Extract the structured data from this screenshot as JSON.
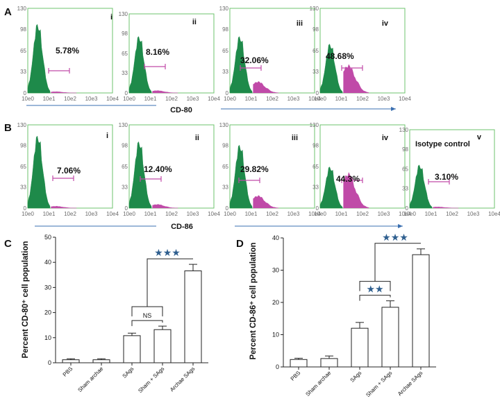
{
  "figure": {
    "panel_labels": [
      "A",
      "B",
      "C",
      "D"
    ],
    "marker_A": "CD-80",
    "marker_B": "CD-86"
  },
  "chart_data": [
    {
      "type": "histogram",
      "panel": "A",
      "title": "CD-80",
      "x_ticks": [
        "10e0",
        "10e1",
        "10e2",
        "10e3",
        "10e4"
      ],
      "y_ticks": [
        "0",
        "33",
        "65",
        "98",
        "130"
      ],
      "ylim": [
        0,
        130
      ],
      "colors": {
        "negative": "#1e8a4a",
        "positive": "#c04aa8",
        "gate": "#c04aa8",
        "frame": "#6cc36c",
        "arrow": "#3a6fb0"
      },
      "subplots": [
        {
          "label": "i",
          "percent": "5.78%",
          "neg_peak": 118,
          "pos_level": 2
        },
        {
          "label": "ii",
          "percent": "8.16%",
          "neg_peak": 104,
          "pos_level": 4
        },
        {
          "label": "iii",
          "percent": "32.06%",
          "neg_peak": 97,
          "pos_level": 18
        },
        {
          "label": "iv",
          "percent": "48.68%",
          "neg_peak": 84,
          "pos_level": 44
        }
      ]
    },
    {
      "type": "histogram",
      "panel": "B",
      "title": "CD-86",
      "x_ticks": [
        "10e0",
        "10e1",
        "10e2",
        "10e3",
        "10e4"
      ],
      "y_ticks": [
        "0",
        "33",
        "65",
        "98",
        "130"
      ],
      "ylim": [
        0,
        130
      ],
      "colors": {
        "negative": "#1e8a4a",
        "positive": "#c04aa8",
        "gate": "#c04aa8",
        "frame": "#6cc36c",
        "arrow": "#3a6fb0"
      },
      "subplots": [
        {
          "label": "i",
          "percent": "7.06%",
          "neg_peak": 126,
          "pos_level": 3
        },
        {
          "label": "ii",
          "percent": "12.40%",
          "neg_peak": 116,
          "pos_level": 6
        },
        {
          "label": "iii",
          "percent": "29.82%",
          "neg_peak": 110,
          "pos_level": 20
        },
        {
          "label": "iv",
          "percent": "44.3%",
          "neg_peak": 72,
          "pos_level": 56
        },
        {
          "label": "v",
          "percent": "3.10%",
          "neg_peak": 80,
          "pos_level": 2,
          "note": "Isotype control"
        }
      ]
    },
    {
      "type": "bar",
      "panel": "C",
      "ylabel": "Percent CD-80⁺ cell population",
      "categories": [
        "PBS",
        "Sham archae",
        "SAgs",
        "Sham + SAgs",
        "Archae SAgs"
      ],
      "values": [
        1.2,
        1.2,
        10.8,
        13.2,
        36.6
      ],
      "errors": [
        0.4,
        0.4,
        1.0,
        1.4,
        2.6
      ],
      "ylim": [
        0,
        50
      ],
      "y_ticks": [
        0,
        10,
        20,
        30,
        40,
        50
      ],
      "annotations": [
        {
          "text": "NS",
          "from": 2,
          "to": 3
        },
        {
          "text": "★★★",
          "from": 2,
          "to": 4,
          "group": [
            2,
            3
          ]
        }
      ]
    },
    {
      "type": "bar",
      "panel": "D",
      "ylabel": "Percent CD-86⁺ cell population",
      "categories": [
        "PBS",
        "Sham archae",
        "SAgs",
        "Sham + SAgs",
        "Archae SAgs"
      ],
      "values": [
        2.3,
        2.6,
        12.0,
        18.5,
        34.8
      ],
      "errors": [
        0.4,
        0.8,
        1.8,
        2.0,
        1.8
      ],
      "ylim": [
        0,
        40
      ],
      "y_ticks": [
        0,
        10,
        20,
        30,
        40
      ],
      "annotations": [
        {
          "text": "★★",
          "from": 2,
          "to": 3
        },
        {
          "text": "★★★",
          "from": 2,
          "to": 4,
          "group": [
            2,
            3
          ]
        }
      ]
    }
  ]
}
